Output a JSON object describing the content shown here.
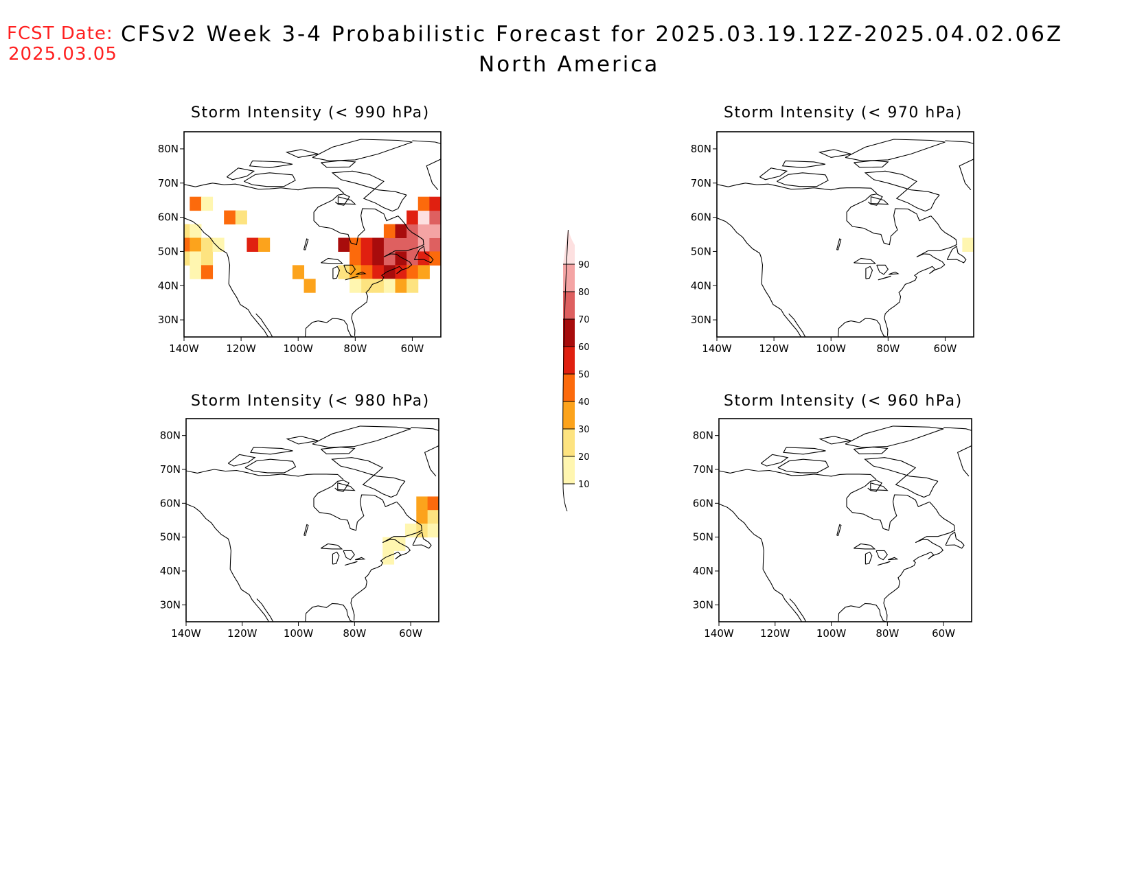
{
  "header": {
    "fcst_label": "FCST Date:",
    "fcst_date": "2025.03.05",
    "title": "CFSv2 Week 3-4 Probabilistic Forecast for 2025.03.19.12Z-2025.04.02.06Z",
    "subtitle": "North America"
  },
  "axes": {
    "lat_ticks": [
      "80N",
      "70N",
      "60N",
      "50N",
      "40N",
      "30N"
    ],
    "lon_ticks": [
      "140W",
      "120W",
      "100W",
      "80W",
      "60W"
    ]
  },
  "panels": [
    {
      "title": "Storm Intensity (< 990 hPa)",
      "threshold_hPa": 990,
      "activity": "high"
    },
    {
      "title": "Storm Intensity (< 970 hPa)",
      "threshold_hPa": 970,
      "activity": "trace"
    },
    {
      "title": "Storm Intensity (< 980 hPa)",
      "threshold_hPa": 980,
      "activity": "low"
    },
    {
      "title": "Storm Intensity (< 960 hPa)",
      "threshold_hPa": 960,
      "activity": "none"
    }
  ],
  "colorbar": {
    "levels": [
      "10",
      "20",
      "30",
      "40",
      "50",
      "60",
      "70",
      "80",
      "90"
    ],
    "colors": [
      "#fff6b0",
      "#fde380",
      "#fca31c",
      "#fc6a0c",
      "#e02010",
      "#a80c0c",
      "#de6060",
      "#f4a4a4",
      "#fde0e0"
    ]
  }
}
